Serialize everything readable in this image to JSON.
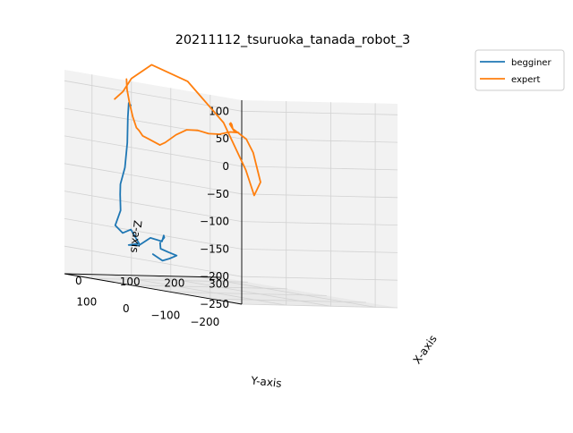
{
  "chart_data": {
    "type": "line",
    "projection": "3d",
    "title": "20211112_tsuruoka_tanada_robot_3",
    "xlabel": "X-axis",
    "ylabel": "Y-axis",
    "zlabel": "Z-axis",
    "x_ticks": [
      "0",
      "100",
      "200",
      "300"
    ],
    "y_ticks": [
      "−200",
      "−100",
      "0",
      "100"
    ],
    "z_ticks": [
      "100",
      "50",
      "0",
      "−50",
      "−100",
      "−150",
      "−200",
      "−250"
    ],
    "legend_position": "top-right",
    "grid": true,
    "pane_color": "#f2f2f2",
    "series": [
      {
        "name": "begginer",
        "color": "#1f77b4",
        "x": [
          50,
          40,
          30,
          20,
          10,
          0,
          10,
          20,
          30,
          60,
          90,
          110,
          100,
          120,
          140,
          160,
          170,
          180,
          175,
          170,
          180,
          190,
          170,
          160,
          150
        ],
        "y": [
          58,
          52,
          43,
          33,
          28,
          28,
          40,
          50,
          75,
          90,
          103,
          105,
          120,
          117,
          110,
          103,
          110,
          120,
          125,
          118,
          110,
          100,
          95,
          102,
          115
        ],
        "z": [
          70,
          75,
          50,
          5,
          -40,
          -70,
          -90,
          -120,
          -150,
          -165,
          -160,
          -185,
          -190,
          -190,
          -175,
          -180,
          -170,
          -175,
          -185,
          -195,
          -200,
          -205,
          -210,
          -215,
          -205
        ]
      },
      {
        "name": "expert",
        "color": "#ff7f0e",
        "x": [
          20,
          30,
          40,
          50,
          60,
          70,
          80,
          90,
          100,
          110,
          120,
          140,
          160,
          180,
          200,
          220,
          240,
          250,
          230,
          210,
          190,
          170,
          150,
          130,
          110,
          90,
          70,
          60,
          50,
          40,
          30,
          20,
          10,
          0,
          -10,
          -20
        ],
        "y": [
          35,
          45,
          50,
          53,
          55,
          60,
          62,
          58,
          55,
          52,
          50,
          45,
          40,
          35,
          30,
          25,
          20,
          10,
          0,
          -20,
          -40,
          -60,
          -80,
          -110,
          -150,
          -190,
          -230,
          -260,
          -255,
          -245,
          -200,
          -120,
          -40,
          0,
          10,
          20
        ],
        "z": [
          120,
          100,
          75,
          50,
          30,
          25,
          15,
          10,
          5,
          0,
          5,
          20,
          30,
          30,
          25,
          25,
          30,
          30,
          35,
          40,
          50,
          55,
          55,
          50,
          45,
          40,
          20,
          -30,
          -55,
          -10,
          70,
          135,
          155,
          125,
          100,
          85
        ]
      }
    ]
  }
}
